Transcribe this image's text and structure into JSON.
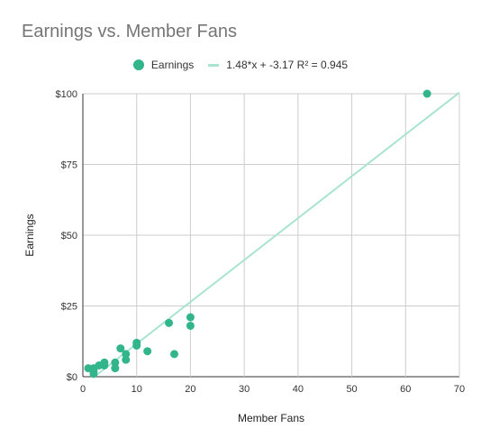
{
  "chart_data": {
    "type": "scatter",
    "title": "Earnings vs. Member Fans",
    "xlabel": "Member Fans",
    "ylabel": "Earnings",
    "xlim": [
      0,
      70
    ],
    "ylim": [
      0,
      100
    ],
    "x_ticks": [
      0,
      10,
      20,
      30,
      40,
      50,
      60,
      70
    ],
    "y_ticks": [
      0,
      25,
      50,
      75,
      100
    ],
    "y_tick_labels": [
      "$0",
      "$25",
      "$50",
      "$75",
      "$100"
    ],
    "grid": true,
    "legend_position": "top",
    "series": [
      {
        "name": "Earnings",
        "color": "#33b58c",
        "points": [
          {
            "x": 1,
            "y": 3
          },
          {
            "x": 2,
            "y": 2
          },
          {
            "x": 2,
            "y": 1
          },
          {
            "x": 2,
            "y": 3
          },
          {
            "x": 3,
            "y": 4
          },
          {
            "x": 4,
            "y": 4
          },
          {
            "x": 4,
            "y": 5
          },
          {
            "x": 6,
            "y": 3
          },
          {
            "x": 6,
            "y": 5
          },
          {
            "x": 7,
            "y": 10
          },
          {
            "x": 8,
            "y": 6
          },
          {
            "x": 8,
            "y": 8
          },
          {
            "x": 10,
            "y": 11
          },
          {
            "x": 10,
            "y": 12
          },
          {
            "x": 12,
            "y": 9
          },
          {
            "x": 16,
            "y": 19
          },
          {
            "x": 17,
            "y": 8
          },
          {
            "x": 20,
            "y": 18
          },
          {
            "x": 20,
            "y": 21
          },
          {
            "x": 64,
            "y": 100
          }
        ]
      }
    ],
    "trendline": {
      "name": "1.48*x + -3.17 R² = 0.945",
      "slope": 1.48,
      "intercept": -3.17,
      "r_squared": 0.945,
      "color": "#a8e4cf"
    }
  }
}
